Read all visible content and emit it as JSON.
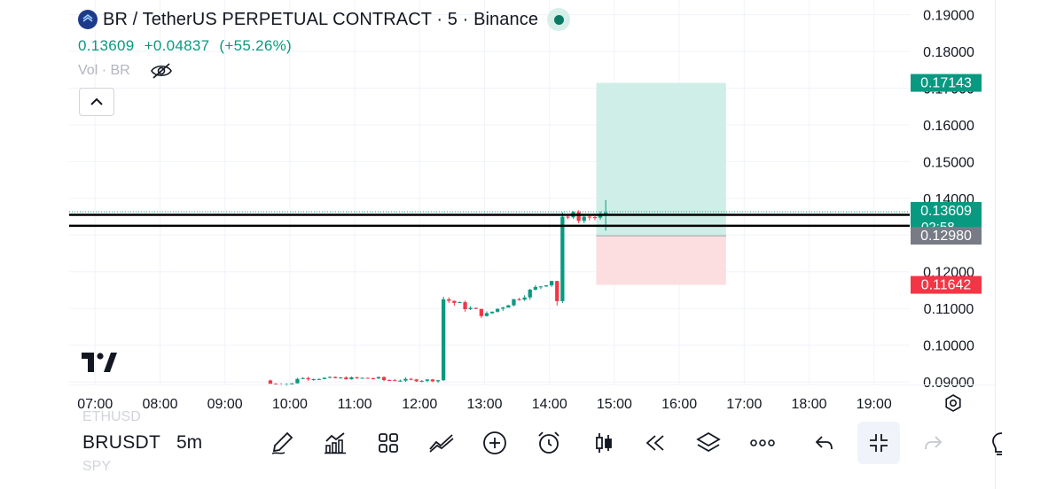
{
  "header": {
    "title": "BR / TetherUS PERPETUAL CONTRACT · 5 · Binance",
    "price": "0.13609",
    "change": "+0.04837",
    "change_pct": "(+55.26%)",
    "volume_label": "Vol · BR",
    "market_status_color": "#0a7a64"
  },
  "colors": {
    "up": "#089981",
    "down": "#f23645",
    "profit_zone": "#cfeee7",
    "loss_zone": "#fcdde0"
  },
  "chart_data": {
    "type": "candlestick",
    "symbol": "BR / TetherUS PERPETUAL CONTRACT",
    "interval": "5",
    "exchange": "Binance",
    "y_ticks": [
      "0.19000",
      "0.18000",
      "0.17000",
      "0.16000",
      "0.15000",
      "0.14000",
      "0.13000",
      "0.12000",
      "0.11000",
      "0.10000",
      "0.09000"
    ],
    "y_range": [
      0.0893,
      0.194
    ],
    "x_ticks": [
      "07:00",
      "08:00",
      "09:00",
      "10:00",
      "11:00",
      "12:00",
      "13:00",
      "14:00",
      "15:00",
      "16:00",
      "17:00",
      "18:00",
      "19:00"
    ],
    "x_range_hours": [
      6.6,
      19.55
    ],
    "price_labels": [
      {
        "value": "0.17143",
        "price": 0.17143,
        "color": "#089981",
        "role": "take-profit"
      },
      {
        "value": "0.13609",
        "sub": "02:58",
        "price": 0.13609,
        "color": "#089981",
        "role": "last-price"
      },
      {
        "value": "0.12980",
        "price": 0.1298,
        "color": "#787b86",
        "role": "entry"
      },
      {
        "value": "0.11642",
        "price": 0.11642,
        "color": "#f23645",
        "role": "stop-loss"
      }
    ],
    "horizontal_lines": [
      0.1355,
      0.1325
    ],
    "position": {
      "start_time": 14.72,
      "end_time": 16.72,
      "entry": 0.1298,
      "take_profit": 0.17143,
      "stop_loss": 0.11642
    },
    "candles_summary": {
      "start_time": 9.7,
      "bar_minutes": 5,
      "segments": [
        {
          "until": 12.35,
          "level": 0.0904,
          "note": "flat"
        },
        {
          "at": 12.35,
          "jump_to": 0.1128
        },
        {
          "until": 13.05,
          "level": 0.112,
          "note": "dip to 0.1065"
        },
        {
          "until": 14.05,
          "level": 0.117,
          "note": "recovery"
        },
        {
          "at": 14.1,
          "jump_to": 0.1355
        },
        {
          "until": 14.85,
          "level": 0.1361,
          "note": "consolidation, high 0.1395"
        }
      ]
    }
  },
  "bottom_bar": {
    "symbol": "BRUSDT",
    "interval": "5m",
    "ghost_above": "ETHUSD",
    "ghost_below": "SPY",
    "tools": [
      "brush-icon",
      "indicators-icon",
      "templates-icon",
      "compare-icon",
      "add-icon",
      "alert-icon",
      "bar-style-icon",
      "replay-icon",
      "layers-icon",
      "more-icon",
      "undo-icon",
      "collapse-icon",
      "redo-icon",
      "idea-icon"
    ]
  }
}
